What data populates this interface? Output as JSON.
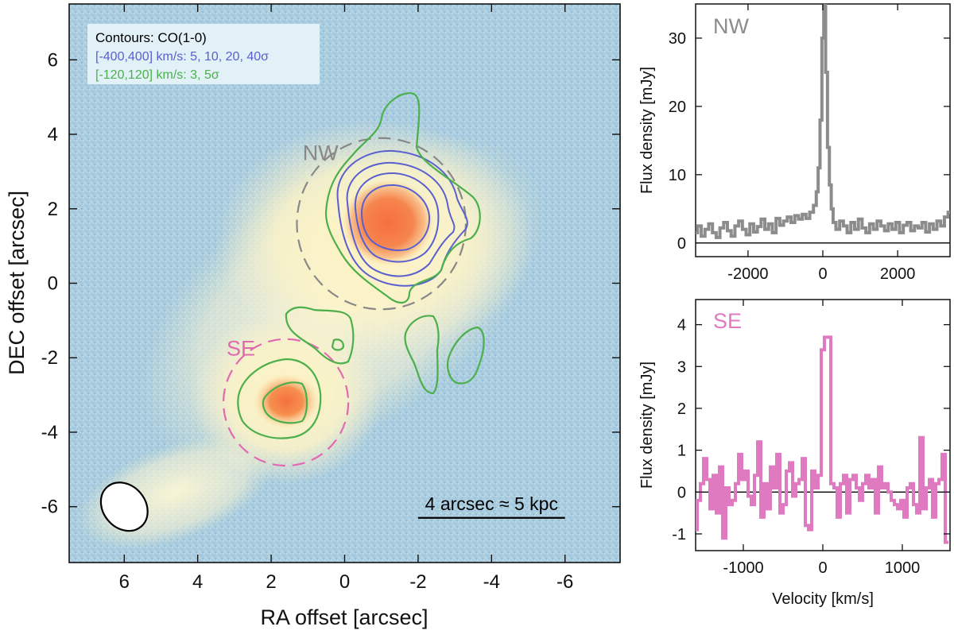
{
  "map": {
    "xlabel": "RA offset [arcsec]",
    "ylabel": "DEC offset [arcsec]",
    "xlim": [
      7.5,
      -7.5
    ],
    "ylim": [
      -7.5,
      7.5
    ],
    "xticks": [
      6,
      4,
      2,
      0,
      -2,
      -4,
      -6
    ],
    "yticks": [
      6,
      4,
      2,
      0,
      -2,
      -4,
      -6
    ],
    "legend": {
      "title": "Contours: CO(1-0)",
      "line1": "[-400,400] km/s: 5, 10, 20, 40σ",
      "line2": "[-120,120] km/s: 3, 5σ",
      "color1": "#5a5fcf",
      "color2": "#4caf4c"
    },
    "regions": [
      {
        "label": "NW",
        "center": [
          -1.0,
          1.6
        ],
        "radius": 2.3,
        "color": "#888888"
      },
      {
        "label": "SE",
        "center": [
          1.6,
          -3.2
        ],
        "radius": 1.7,
        "color": "#e06ab0"
      }
    ],
    "scalebar": {
      "label": "4 arcsec ≈ 5 kpc",
      "length_arcsec": 4,
      "from": -2,
      "to": -6
    },
    "beam": {
      "center": [
        6.0,
        -6.0
      ],
      "major": 1.4,
      "minor": 1.1
    }
  },
  "chart_data": [
    {
      "type": "line",
      "title": "NW",
      "xlabel": "",
      "ylabel": "Flux density [mJy]",
      "xlim": [
        -3400,
        3400
      ],
      "ylim": [
        -2,
        35
      ],
      "xticks": [
        -2000,
        0,
        2000
      ],
      "yticks": [
        0,
        10,
        20,
        30
      ],
      "color": "#8c8c8c",
      "series": [
        {
          "name": "NW",
          "x": [
            -3400,
            -3300,
            -3200,
            -3100,
            -3000,
            -2900,
            -2800,
            -2700,
            -2600,
            -2500,
            -2400,
            -2300,
            -2200,
            -2100,
            -2000,
            -1900,
            -1800,
            -1700,
            -1600,
            -1500,
            -1400,
            -1300,
            -1200,
            -1100,
            -1000,
            -900,
            -800,
            -700,
            -600,
            -500,
            -400,
            -300,
            -200,
            -150,
            -100,
            -50,
            0,
            50,
            100,
            150,
            200,
            250,
            300,
            400,
            500,
            600,
            700,
            800,
            900,
            1000,
            1100,
            1200,
            1300,
            1400,
            1500,
            1600,
            1700,
            1800,
            1900,
            2000,
            2100,
            2200,
            2300,
            2400,
            2500,
            2600,
            2700,
            2800,
            2900,
            3000,
            3100,
            3200,
            3300,
            3400
          ],
          "values": [
            1.5,
            2.5,
            1.0,
            2.0,
            2.8,
            1.5,
            0.8,
            2.2,
            3.0,
            1.8,
            1.0,
            2.5,
            3.2,
            2.0,
            1.2,
            2.8,
            1.6,
            2.4,
            3.5,
            2.0,
            2.8,
            1.5,
            3.6,
            2.6,
            3.2,
            3.8,
            3.0,
            4.0,
            3.5,
            4.2,
            3.6,
            4.5,
            5.5,
            7.5,
            11.0,
            18.0,
            30.0,
            35.0,
            25.0,
            14.0,
            8.5,
            5.0,
            3.0,
            2.0,
            3.2,
            2.5,
            1.5,
            3.0,
            2.0,
            3.5,
            2.2,
            1.5,
            2.8,
            2.0,
            3.2,
            2.5,
            1.8,
            2.8,
            2.0,
            3.0,
            1.5,
            2.6,
            3.0,
            1.8,
            2.5,
            2.2,
            3.0,
            1.6,
            2.8,
            2.0,
            3.2,
            2.5,
            3.8,
            4.5
          ]
        }
      ]
    },
    {
      "type": "line",
      "title": "SE",
      "xlabel": "Velocity [km/s]",
      "ylabel": "Flux density [mJy]",
      "xlim": [
        -1600,
        1600
      ],
      "ylim": [
        -1.4,
        4.6
      ],
      "xticks": [
        -1000,
        0,
        1000
      ],
      "yticks": [
        -1,
        0,
        1,
        2,
        3,
        4
      ],
      "color": "#e07ac0",
      "series": [
        {
          "name": "SE",
          "x": [
            -1600,
            -1560,
            -1520,
            -1480,
            -1440,
            -1400,
            -1360,
            -1320,
            -1280,
            -1240,
            -1200,
            -1160,
            -1120,
            -1080,
            -1040,
            -1000,
            -960,
            -920,
            -880,
            -840,
            -800,
            -760,
            -720,
            -680,
            -640,
            -600,
            -560,
            -520,
            -480,
            -440,
            -400,
            -360,
            -320,
            -280,
            -240,
            -200,
            -160,
            -120,
            -80,
            -40,
            0,
            40,
            80,
            120,
            160,
            200,
            240,
            280,
            320,
            360,
            400,
            440,
            480,
            520,
            560,
            600,
            640,
            680,
            720,
            760,
            800,
            840,
            880,
            920,
            960,
            1000,
            1040,
            1080,
            1120,
            1160,
            1200,
            1240,
            1280,
            1320,
            1360,
            1400,
            1440,
            1480,
            1520,
            1560
          ],
          "values": [
            -0.9,
            -0.2,
            0.2,
            0.8,
            0.3,
            -0.4,
            0.4,
            -0.5,
            0.6,
            -1.1,
            0.1,
            -0.3,
            -0.2,
            0.2,
            0.9,
            0.3,
            0.5,
            -0.1,
            -0.3,
            0.4,
            1.2,
            -0.6,
            0.2,
            -0.4,
            0.6,
            0.1,
            0.9,
            -0.5,
            -0.3,
            0.5,
            0.7,
            -0.1,
            0.2,
            0.3,
            0.8,
            -0.8,
            -0.9,
            0.5,
            0.1,
            0.4,
            3.4,
            3.7,
            3.7,
            0.2,
            0.1,
            -0.6,
            0.2,
            0.4,
            -0.5,
            0.3,
            0.4,
            0.1,
            -0.2,
            0.2,
            0.4,
            0.1,
            0.3,
            -0.5,
            0.6,
            0.1,
            0.2,
            0.0,
            -0.2,
            -0.3,
            -0.4,
            -0.2,
            -0.6,
            0.1,
            0.2,
            -0.3,
            -0.5,
            1.3,
            -0.4,
            0.1,
            0.3,
            -0.6,
            0.2,
            0.3,
            0.9,
            -1.2
          ]
        }
      ]
    }
  ]
}
